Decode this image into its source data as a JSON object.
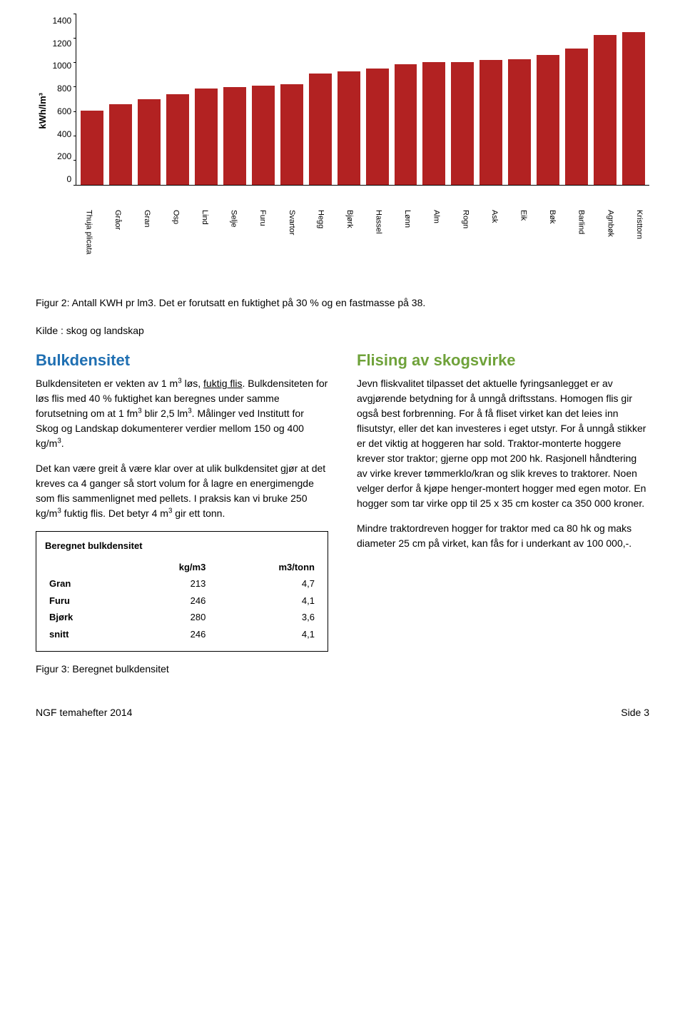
{
  "chart": {
    "type": "bar",
    "y_label": "kWh/lm³",
    "y_ticks": [
      1400,
      1200,
      1000,
      800,
      600,
      400,
      200,
      0
    ],
    "ylim_max": 1400,
    "bar_color": "#b22222",
    "grid_color": "#000000",
    "background_color": "#ffffff",
    "categories": [
      "Thuja plicata",
      "Gråor",
      "Gran",
      "Osp",
      "Lind",
      "Selje",
      "Furu",
      "Svartor",
      "Hegg",
      "Bjørk",
      "Hassel",
      "Lønn",
      "Alm",
      "Rogn",
      "Ask",
      "Eik",
      "Bøk",
      "Barlind",
      "Agnbøk",
      "Kristtorn"
    ],
    "values": [
      605,
      660,
      700,
      740,
      790,
      800,
      810,
      820,
      910,
      930,
      950,
      985,
      1005,
      1005,
      1020,
      1025,
      1060,
      1115,
      1225,
      1250
    ]
  },
  "caption_fig2": "Figur 2: Antall KWH pr lm3. Det er forutsatt en fuktighet på 30 % og en fastmasse på 38.",
  "source_line": "Kilde : skog og landskap",
  "left": {
    "heading": "Bulkdensitet",
    "p1_a": "Bulkdensiteten er vekten av 1 m",
    "p1_b": " løs, ",
    "p1_c": "fuktig flis",
    "p1_d": ". Bulkdensiteten for løs flis med 40 % fuktighet kan beregnes under samme forutsetning om at 1 fm",
    "p1_e": " blir 2,5 lm",
    "p1_f": ". Målinger ved Institutt for Skog og Landskap dokumenterer verdier mellom 150 og 400 kg/m",
    "p1_g": ".",
    "p2_a": "Det kan være greit å være klar over at ulik bulkdensitet gjør at det kreves ca 4 ganger så stort volum for å lagre en energimengde som flis sammenlignet med pellets. I praksis kan vi bruke 250 kg/m",
    "p2_b": " fuktig flis. Det betyr 4 m",
    "p2_c": " gir ett tonn.",
    "table": {
      "title": "Beregnet bulkdensitet",
      "col1": "kg/m3",
      "col2": "m3/tonn",
      "rows": [
        {
          "name": "Gran",
          "kg": "213",
          "m3": "4,7"
        },
        {
          "name": "Furu",
          "kg": "246",
          "m3": "4,1"
        },
        {
          "name": "Bjørk",
          "kg": "280",
          "m3": "3,6"
        },
        {
          "name": "snitt",
          "kg": "246",
          "m3": "4,1"
        }
      ]
    },
    "caption_fig3": "Figur 3: Beregnet bulkdensitet"
  },
  "right": {
    "heading": "Flising av skogsvirke",
    "p1": "Jevn fliskvalitet tilpasset det aktuelle fyringsanlegget er av avgjørende betydning for å unngå driftsstans. Homogen flis gir også best forbrenning. For å få fliset virket kan det leies inn flisutstyr, eller det kan investeres i eget utstyr. For å unngå stikker er det viktig at hoggeren har sold. Traktor-monterte hoggere krever stor traktor; gjerne opp mot 200 hk. Rasjonell håndtering av virke krever tømmerklo/kran og slik kreves to traktorer. Noen velger derfor å kjøpe henger-montert hogger med egen motor. En hogger som tar virke opp til 25 x 35 cm koster ca 350 000 kroner.",
    "p2": "Mindre traktordreven hogger for traktor med ca 80 hk og maks diameter 25 cm på virket, kan fås for i underkant av 100 000,-."
  },
  "footer": {
    "left": "NGF temahefter 2014",
    "right": "Side 3"
  }
}
